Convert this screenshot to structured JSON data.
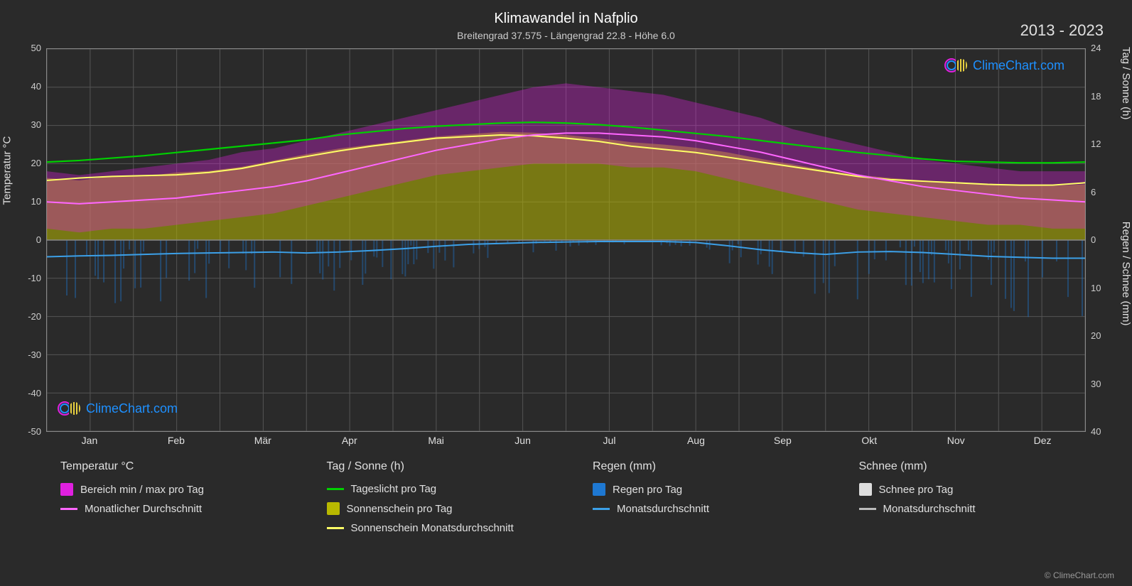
{
  "title": "Klimawandel in Nafplio",
  "subtitle": "Breitengrad 37.575 - Längengrad 22.8 - Höhe 6.0",
  "year_range": "2013 - 2023",
  "copyright": "© ClimeChart.com",
  "watermark_text": "ClimeChart.com",
  "watermark_color": "#1e90ff",
  "axes": {
    "y_left_label": "Temperatur °C",
    "y_right_top_label": "Tag / Sonne (h)",
    "y_right_bottom_label": "Regen / Schnee (mm)",
    "y_left_ticks": [
      50,
      40,
      30,
      20,
      10,
      0,
      -10,
      -20,
      -30,
      -40,
      -50
    ],
    "y_right_top_ticks": [
      24,
      18,
      12,
      6,
      0
    ],
    "y_right_bottom_ticks": [
      10,
      20,
      30,
      40
    ],
    "x_ticks": [
      "Jan",
      "Feb",
      "Mär",
      "Apr",
      "Mai",
      "Jun",
      "Jul",
      "Aug",
      "Sep",
      "Okt",
      "Nov",
      "Dez"
    ],
    "y_left_min": -50,
    "y_left_max": 50,
    "y_right_top_min": 0,
    "y_right_top_max": 24,
    "y_right_bottom_min": 0,
    "y_right_bottom_max": 40,
    "grid_color": "#555555",
    "background": "#2a2a2a"
  },
  "colors": {
    "temp_range": "#e020e0",
    "temp_range_alpha": 0.5,
    "temp_avg_line": "#ff66ff",
    "daylight_line": "#00d000",
    "sunshine_fill": "#b8b800",
    "sunshine_fill_alpha": 0.55,
    "sunshine_line": "#ffff66",
    "rain_fill": "#1e78d2",
    "rain_fill_alpha": 0.4,
    "rain_line": "#3ca0e8",
    "snow_fill": "#dddddd",
    "snow_line": "#bbbbbb"
  },
  "legend": {
    "groups": [
      {
        "header": "Temperatur °C",
        "items": [
          {
            "type": "box",
            "color": "#e020e0",
            "label": "Bereich min / max pro Tag"
          },
          {
            "type": "line",
            "color": "#ff66ff",
            "label": "Monatlicher Durchschnitt"
          }
        ]
      },
      {
        "header": "Tag / Sonne (h)",
        "items": [
          {
            "type": "line",
            "color": "#00d000",
            "label": "Tageslicht pro Tag"
          },
          {
            "type": "box",
            "color": "#b8b800",
            "label": "Sonnenschein pro Tag"
          },
          {
            "type": "line",
            "color": "#ffff66",
            "label": "Sonnenschein Monatsdurchschnitt"
          }
        ]
      },
      {
        "header": "Regen (mm)",
        "items": [
          {
            "type": "box",
            "color": "#1e78d2",
            "label": "Regen pro Tag"
          },
          {
            "type": "line",
            "color": "#3ca0e8",
            "label": "Monatsdurchschnitt"
          }
        ]
      },
      {
        "header": "Schnee (mm)",
        "items": [
          {
            "type": "box",
            "color": "#dddddd",
            "label": "Schnee pro Tag"
          },
          {
            "type": "line",
            "color": "#bbbbbb",
            "label": "Monatsdurchschnitt"
          }
        ]
      }
    ]
  },
  "series": {
    "daylight_hours": [
      9.8,
      10.0,
      10.3,
      10.6,
      11.0,
      11.4,
      11.8,
      12.2,
      12.6,
      13.2,
      13.6,
      14.0,
      14.3,
      14.5,
      14.7,
      14.8,
      14.7,
      14.5,
      14.2,
      13.8,
      13.4,
      13.0,
      12.5,
      12.0,
      11.5,
      11.0,
      10.6,
      10.2,
      9.9,
      9.8,
      9.7,
      9.7,
      9.8
    ],
    "sunshine_avg_hours": [
      7.5,
      7.8,
      8.0,
      8.1,
      8.2,
      8.5,
      9.0,
      9.8,
      10.5,
      11.2,
      11.8,
      12.3,
      12.8,
      13.0,
      13.2,
      13.1,
      12.8,
      12.4,
      11.8,
      11.4,
      11.0,
      10.4,
      9.8,
      9.2,
      8.6,
      8.0,
      7.6,
      7.4,
      7.2,
      7.0,
      6.9,
      6.9,
      7.2
    ],
    "temp_avg_c": [
      10.0,
      9.5,
      10.0,
      10.5,
      11.0,
      12.0,
      13.0,
      14.0,
      15.5,
      17.5,
      19.5,
      21.5,
      23.5,
      25.0,
      26.5,
      27.5,
      28.0,
      28.0,
      27.5,
      27.0,
      26.0,
      24.5,
      23.0,
      21.0,
      19.0,
      17.0,
      15.5,
      14.0,
      13.0,
      12.0,
      11.0,
      10.5,
      10.0
    ],
    "temp_max_band_c": [
      18,
      17,
      18,
      19,
      20,
      21,
      23,
      24,
      26,
      28,
      30,
      32,
      34,
      36,
      38,
      40,
      41,
      40,
      39,
      38,
      36,
      34,
      32,
      29,
      27,
      25,
      23,
      21,
      20,
      19,
      18,
      18,
      18
    ],
    "temp_min_band_c": [
      3,
      2,
      3,
      3,
      4,
      5,
      6,
      7,
      9,
      11,
      13,
      15,
      17,
      18,
      19,
      20,
      20,
      20,
      19,
      19,
      18,
      16,
      14,
      12,
      10,
      8,
      7,
      6,
      5,
      4,
      4,
      3,
      3
    ],
    "sunshine_fill_hours": [
      7.8,
      7.5,
      8.0,
      8.0,
      8.5,
      8.7,
      9.2,
      10.0,
      10.8,
      11.5,
      12.0,
      12.5,
      13.0,
      13.3,
      13.6,
      13.5,
      13.2,
      12.8,
      12.3,
      12.0,
      11.6,
      11.0,
      10.2,
      9.5,
      8.8,
      8.2,
      7.8,
      7.5,
      7.2,
      7.0,
      6.9,
      6.8,
      7.0
    ],
    "rain_avg_mm": [
      3.5,
      3.3,
      3.2,
      3.0,
      2.8,
      2.7,
      2.6,
      2.5,
      2.7,
      2.5,
      2.2,
      1.8,
      1.3,
      0.9,
      0.7,
      0.5,
      0.4,
      0.3,
      0.3,
      0.3,
      0.5,
      1.2,
      2.0,
      2.6,
      3.0,
      2.5,
      2.4,
      2.6,
      3.0,
      3.4,
      3.6,
      3.8,
      3.8
    ]
  }
}
